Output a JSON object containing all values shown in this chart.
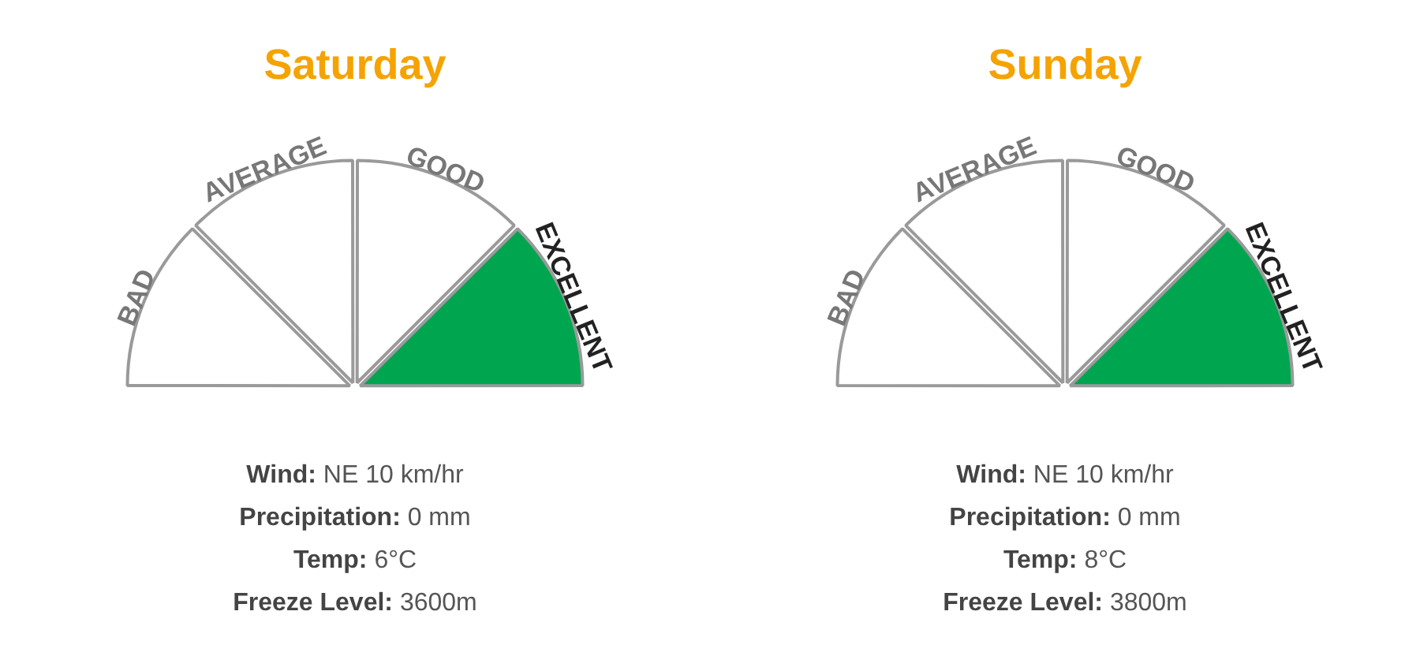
{
  "chart_data": [
    {
      "type": "pie",
      "title": "Saturday",
      "categories": [
        "BAD",
        "AVERAGE",
        "GOOD",
        "EXCELLENT"
      ],
      "values": [
        25,
        25,
        25,
        25
      ],
      "colors": [
        "#ffffff",
        "#ffffff",
        "#ffffff",
        "#00a550"
      ],
      "annotations": [
        "Wind: NE 10 km/hr",
        "Precipitation: 0 mm",
        "Temp: 6°C",
        "Freeze Level: 3600m"
      ]
    },
    {
      "type": "pie",
      "title": "Sunday",
      "categories": [
        "BAD",
        "AVERAGE",
        "GOOD",
        "EXCELLENT"
      ],
      "values": [
        25,
        25,
        25,
        25
      ],
      "colors": [
        "#ffffff",
        "#ffffff",
        "#ffffff",
        "#00a550"
      ],
      "annotations": [
        "Wind: NE 10 km/hr",
        "Precipitation: 0 mm",
        "Temp: 8°C",
        "Freeze Level: 3800m"
      ]
    }
  ]
}
